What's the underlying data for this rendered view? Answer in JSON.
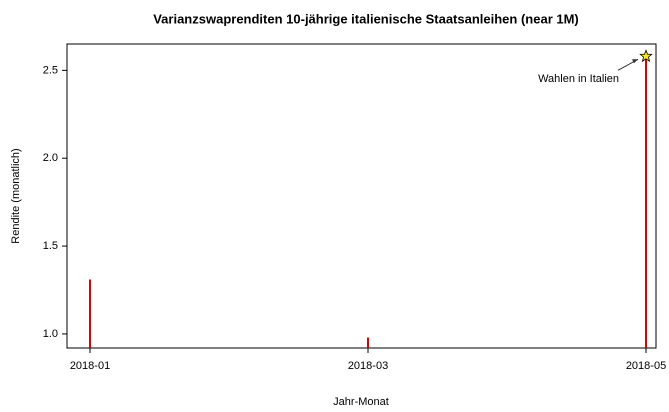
{
  "chart_data": {
    "type": "spike",
    "title": "Varianzswaprenditen 10-jährige italienische Staatsanleihen (near 1M)",
    "xlabel": "Jahr-Monat",
    "ylabel": "Rendite (monatlich)",
    "categories": [
      "2018-01",
      "2018-03",
      "2018-05"
    ],
    "values": [
      1.31,
      0.98,
      2.58
    ],
    "color": "#e00000",
    "ylim": [
      0.92,
      2.65
    ],
    "yticks": [
      {
        "value": 1.0,
        "label": "1.0"
      },
      1.5,
      {
        "value": 2.0,
        "label": "2.0"
      },
      2.5
    ],
    "annotation": "Wahlen in Italien"
  }
}
